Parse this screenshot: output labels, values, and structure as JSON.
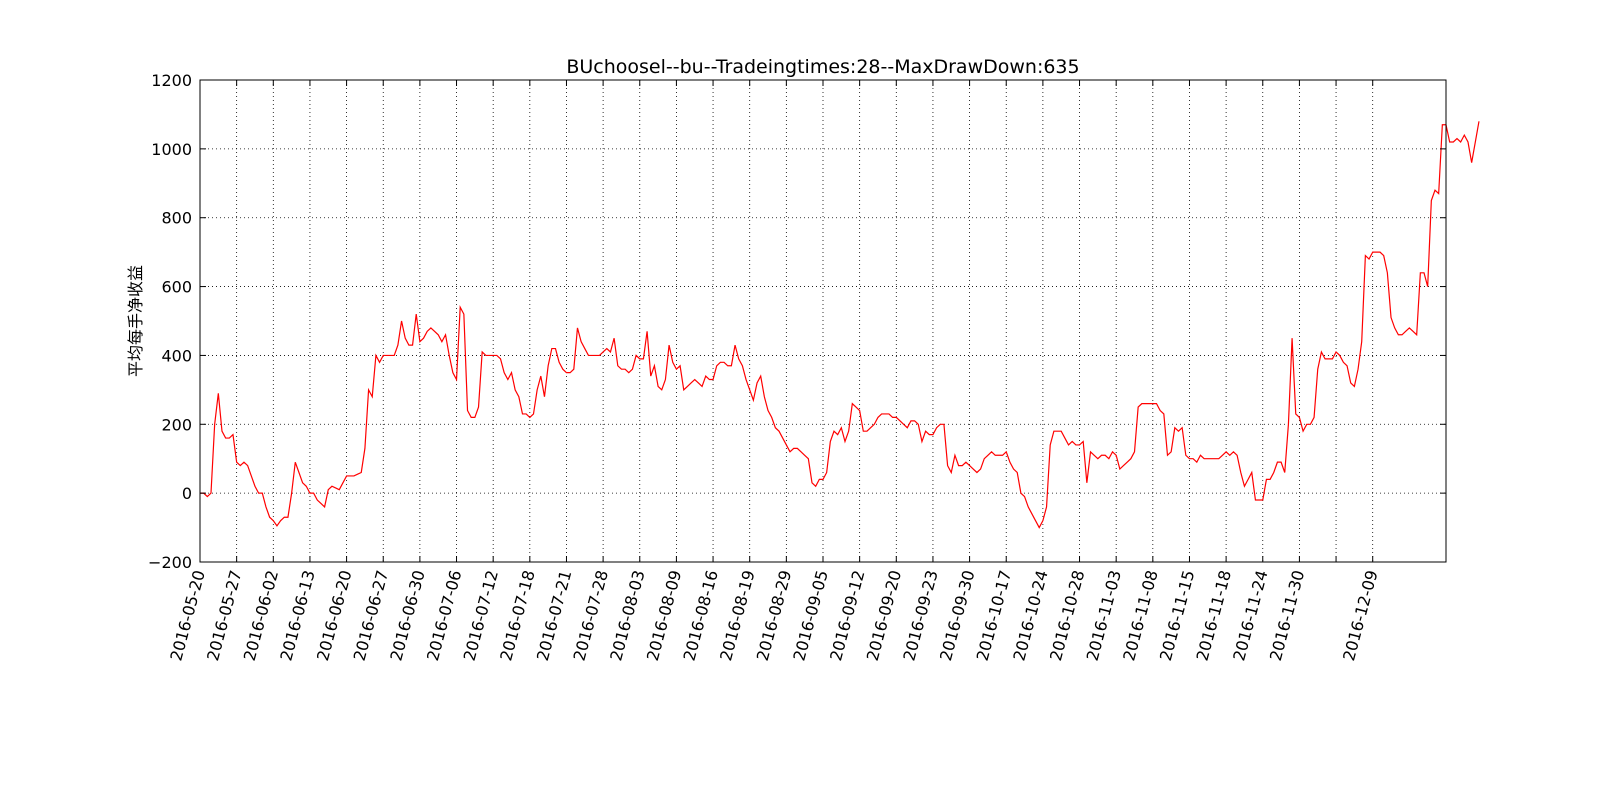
{
  "chart_data": {
    "type": "line",
    "title": "BUchoosel--bu--Tradeingtimes:28--MaxDrawDown:635",
    "xlabel": "",
    "ylabel": "平均每手净收益",
    "ylim": [
      -200,
      1200
    ],
    "yticks": [
      -200,
      0,
      200,
      400,
      600,
      800,
      1000,
      1200
    ],
    "ytick_labels": [
      "−200",
      "0",
      "200",
      "400",
      "600",
      "800",
      "1000",
      "1200"
    ],
    "xlim": [
      0,
      340
    ],
    "xticks": [
      0,
      10,
      20,
      30,
      40,
      50,
      60,
      70,
      80,
      90,
      100,
      110,
      120,
      130,
      140,
      150,
      160,
      170,
      180,
      190,
      200,
      210,
      220,
      230,
      240,
      250,
      260,
      270,
      280,
      290,
      300,
      310,
      320
    ],
    "xtick_labels": [
      "2016-05-20",
      "2016-05-27",
      "2016-06-02",
      "2016-06-13",
      "2016-06-20",
      "2016-06-27",
      "2016-06-30",
      "2016-07-06",
      "2016-07-12",
      "2016-07-18",
      "2016-07-21",
      "2016-07-28",
      "2016-08-03",
      "2016-08-09",
      "2016-08-16",
      "2016-08-19",
      "2016-08-29",
      "2016-09-05",
      "2016-09-12",
      "2016-09-20",
      "2016-09-23",
      "2016-09-30",
      "2016-10-17",
      "2016-10-24",
      "2016-10-28",
      "2016-11-03",
      "2016-11-08",
      "2016-11-15",
      "2016-11-18",
      "2016-11-24",
      "2016-11-30",
      "",
      "2016-12-09"
    ],
    "grid": true,
    "color": "#ff0000",
    "series": [
      {
        "values": [
          0,
          0,
          -10,
          0,
          200,
          290,
          180,
          160,
          160,
          170,
          90,
          80,
          90,
          80,
          50,
          20,
          0,
          0,
          -40,
          -70,
          -80,
          -95,
          -80,
          -70,
          -70,
          0,
          90,
          60,
          30,
          20,
          0,
          0,
          -20,
          -30,
          -40,
          10,
          20,
          15,
          10,
          30,
          50,
          50,
          50,
          55,
          60,
          130,
          300,
          280,
          400,
          380,
          400,
          400,
          400,
          400,
          430,
          500,
          450,
          430,
          430,
          520,
          440,
          450,
          470,
          480,
          470,
          460,
          440,
          460,
          400,
          350,
          330,
          540,
          520,
          240,
          220,
          220,
          250,
          410,
          400,
          400,
          400,
          400,
          390,
          350,
          330,
          350,
          300,
          280,
          230,
          230,
          220,
          230,
          300,
          340,
          280,
          370,
          420,
          420,
          380,
          360,
          350,
          350,
          360,
          480,
          440,
          420,
          400,
          400,
          400,
          400,
          410,
          420,
          410,
          450,
          370,
          360,
          360,
          350,
          360,
          400,
          390,
          390,
          470,
          340,
          370,
          310,
          300,
          330,
          430,
          380,
          360,
          370,
          300,
          310,
          320,
          330,
          320,
          310,
          340,
          330,
          330,
          370,
          380,
          380,
          370,
          370,
          430,
          390,
          370,
          330,
          300,
          270,
          320,
          340,
          280,
          240,
          220,
          190,
          180,
          160,
          140,
          120,
          130,
          130,
          120,
          110,
          100,
          30,
          20,
          40,
          40,
          60,
          150,
          180,
          170,
          190,
          150,
          180,
          260,
          250,
          240,
          180,
          180,
          190,
          200,
          220,
          230,
          230,
          230,
          220,
          220,
          210,
          200,
          190,
          210,
          210,
          200,
          150,
          180,
          170,
          170,
          190,
          200,
          200,
          80,
          60,
          110,
          80,
          80,
          90,
          80,
          70,
          60,
          70,
          100,
          110,
          120,
          110,
          110,
          110,
          120,
          90,
          70,
          60,
          0,
          -10,
          -40,
          -60,
          -80,
          -100,
          -80,
          -40,
          140,
          180,
          180,
          180,
          160,
          140,
          150,
          140,
          140,
          150,
          30,
          120,
          110,
          100,
          110,
          110,
          100,
          120,
          110,
          70,
          80,
          90,
          100,
          120,
          250,
          260,
          260,
          260,
          260,
          260,
          240,
          230,
          110,
          120,
          190,
          180,
          190,
          110,
          100,
          100,
          90,
          110,
          100,
          100,
          100,
          100,
          100,
          110,
          120,
          110,
          120,
          110,
          60,
          20,
          40,
          60,
          -20,
          -20,
          -20,
          40,
          40,
          60,
          90,
          90,
          60,
          200,
          450,
          230,
          220,
          180,
          200,
          200,
          220,
          360,
          410,
          390,
          390,
          390,
          410,
          400,
          380,
          370,
          320,
          310,
          360,
          440,
          690,
          680,
          700,
          700,
          700,
          690,
          640,
          510,
          480,
          460,
          460,
          470,
          480,
          470,
          460,
          640,
          640,
          600,
          850,
          880,
          870,
          1070,
          1070,
          1020,
          1020,
          1030,
          1020,
          1040,
          1020,
          960,
          1020,
          1080
        ]
      }
    ]
  }
}
